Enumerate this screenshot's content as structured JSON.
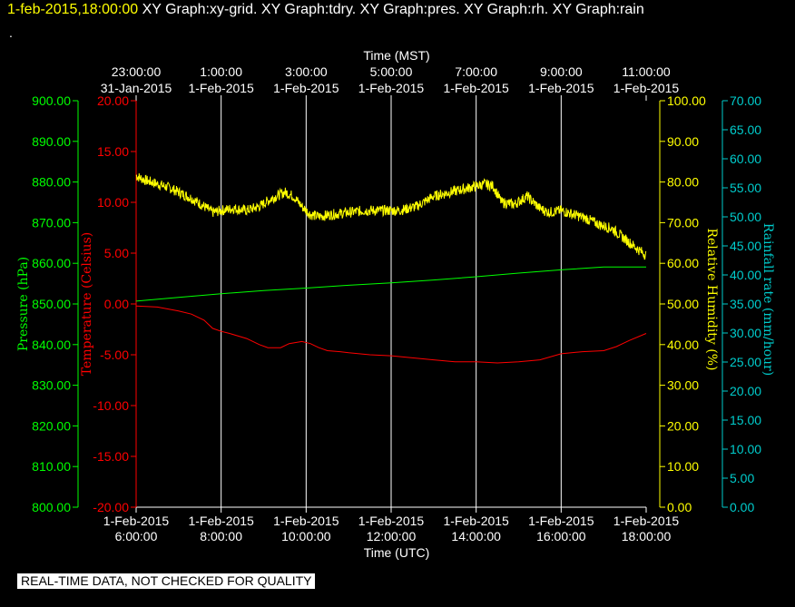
{
  "header": {
    "timestamp": "1-feb-2015,18:00:00",
    "title": "XY Graph:xy-grid.  XY Graph:tdry.  XY Graph:pres.  XY Graph:rh.  XY Graph:rain",
    "dot": "."
  },
  "notice": "REAL-TIME DATA, NOT CHECKED FOR QUALITY",
  "colors": {
    "temperature": "#ff0000",
    "pressure": "#00ff00",
    "humidity": "#ffff00",
    "rain": "#00cccc",
    "grid": "#ffffff",
    "background": "#000000"
  },
  "chart_data": {
    "type": "line",
    "title": "",
    "grid": true,
    "x_bottom": {
      "label": "Time (UTC)",
      "range": [
        "1-Feb-2015 06:00:00",
        "1-Feb-2015 18:00:00"
      ],
      "ticks": [
        {
          "date": "1-Feb-2015",
          "time": "6:00:00"
        },
        {
          "date": "1-Feb-2015",
          "time": "8:00:00"
        },
        {
          "date": "1-Feb-2015",
          "time": "10:00:00"
        },
        {
          "date": "1-Feb-2015",
          "time": "12:00:00"
        },
        {
          "date": "1-Feb-2015",
          "time": "14:00:00"
        },
        {
          "date": "1-Feb-2015",
          "time": "16:00:00"
        },
        {
          "date": "1-Feb-2015",
          "time": "18:00:00"
        }
      ]
    },
    "x_top": {
      "label": "Time (MST)",
      "ticks": [
        {
          "time": "23:00:00",
          "date": "31-Jan-2015"
        },
        {
          "time": "1:00:00",
          "date": "1-Feb-2015"
        },
        {
          "time": "3:00:00",
          "date": "1-Feb-2015"
        },
        {
          "time": "5:00:00",
          "date": "1-Feb-2015"
        },
        {
          "time": "7:00:00",
          "date": "1-Feb-2015"
        },
        {
          "time": "9:00:00",
          "date": "1-Feb-2015"
        },
        {
          "time": "11:00:00",
          "date": "1-Feb-2015"
        }
      ]
    },
    "axes": {
      "pressure": {
        "label": "Pressure (hPa)",
        "range": [
          800,
          900
        ],
        "ticks": [
          "900.00",
          "890.00",
          "880.00",
          "870.00",
          "860.00",
          "850.00",
          "840.00",
          "830.00",
          "820.00",
          "810.00",
          "800.00"
        ]
      },
      "temperature": {
        "label": "Temperature (Celsius)",
        "range": [
          -20,
          20
        ],
        "ticks": [
          "20.00",
          "15.00",
          "10.00",
          "5.00",
          "0.00",
          "-5.00",
          "-10.00",
          "-15.00",
          "-20.00"
        ]
      },
      "humidity": {
        "label": "Relative Humidity (%)",
        "range": [
          0,
          100
        ],
        "ticks": [
          "100.00",
          "90.00",
          "80.00",
          "70.00",
          "60.00",
          "50.00",
          "40.00",
          "30.00",
          "20.00",
          "10.00",
          "0.00"
        ]
      },
      "rain": {
        "label": "Rainfall rate (mm/hour)",
        "range": [
          0,
          70
        ],
        "ticks": [
          "70.00",
          "65.00",
          "60.00",
          "55.00",
          "50.00",
          "45.00",
          "40.00",
          "35.00",
          "30.00",
          "25.00",
          "20.00",
          "15.00",
          "10.00",
          "5.00",
          "0.00"
        ]
      }
    },
    "series": [
      {
        "axis": "temperature",
        "color": "#ff0000",
        "x": [
          6.0,
          6.5,
          7.0,
          7.3,
          7.6,
          7.8,
          8.0,
          8.2,
          8.6,
          8.9,
          9.1,
          9.4,
          9.6,
          9.9,
          10.1,
          10.3,
          10.5,
          10.8,
          11.0,
          11.5,
          12.0,
          12.5,
          13.0,
          13.5,
          14.0,
          14.5,
          15.0,
          15.5,
          16.0,
          16.5,
          17.0,
          17.3,
          17.6,
          18.0
        ],
        "y": [
          -0.2,
          -0.3,
          -0.7,
          -1.0,
          -1.6,
          -2.4,
          -2.7,
          -2.9,
          -3.4,
          -4.0,
          -4.3,
          -4.3,
          -3.9,
          -3.7,
          -3.9,
          -4.3,
          -4.6,
          -4.7,
          -4.8,
          -5.0,
          -5.1,
          -5.3,
          -5.5,
          -5.7,
          -5.7,
          -5.8,
          -5.7,
          -5.5,
          -4.9,
          -4.7,
          -4.6,
          -4.2,
          -3.6,
          -2.9
        ]
      },
      {
        "axis": "pressure",
        "color": "#00ff00",
        "x": [
          6,
          7,
          8,
          9,
          10,
          11,
          12,
          13,
          14,
          15,
          16,
          17,
          18
        ],
        "y": [
          850.7,
          851.6,
          852.5,
          853.3,
          853.9,
          854.6,
          855.2,
          855.9,
          856.7,
          857.6,
          858.4,
          859.1,
          859.1
        ]
      },
      {
        "axis": "humidity",
        "color": "#ffff00",
        "x": [
          6.0,
          6.2,
          6.5,
          6.8,
          7.0,
          7.3,
          7.6,
          7.8,
          8.0,
          8.3,
          8.6,
          8.9,
          9.2,
          9.5,
          9.7,
          9.9,
          10.1,
          10.3,
          10.6,
          11.0,
          11.4,
          11.8,
          12.2,
          12.6,
          13.0,
          13.4,
          13.8,
          14.2,
          14.4,
          14.6,
          14.9,
          15.2,
          15.5,
          15.7,
          16.0,
          16.3,
          16.6,
          16.9,
          17.2,
          17.5,
          17.8,
          18.0
        ],
        "y": [
          81.5,
          80.5,
          79.5,
          78.5,
          77.5,
          76.0,
          74.0,
          72.5,
          73.0,
          73.5,
          73.0,
          74.0,
          76.0,
          77.5,
          76.5,
          74.0,
          72.0,
          71.5,
          72.0,
          72.5,
          73.0,
          73.0,
          73.0,
          74.0,
          76.5,
          77.5,
          78.5,
          79.5,
          79.0,
          75.0,
          74.5,
          76.5,
          73.5,
          72.5,
          73.0,
          72.0,
          71.0,
          69.5,
          68.5,
          66.0,
          63.5,
          62.0
        ]
      }
    ]
  }
}
